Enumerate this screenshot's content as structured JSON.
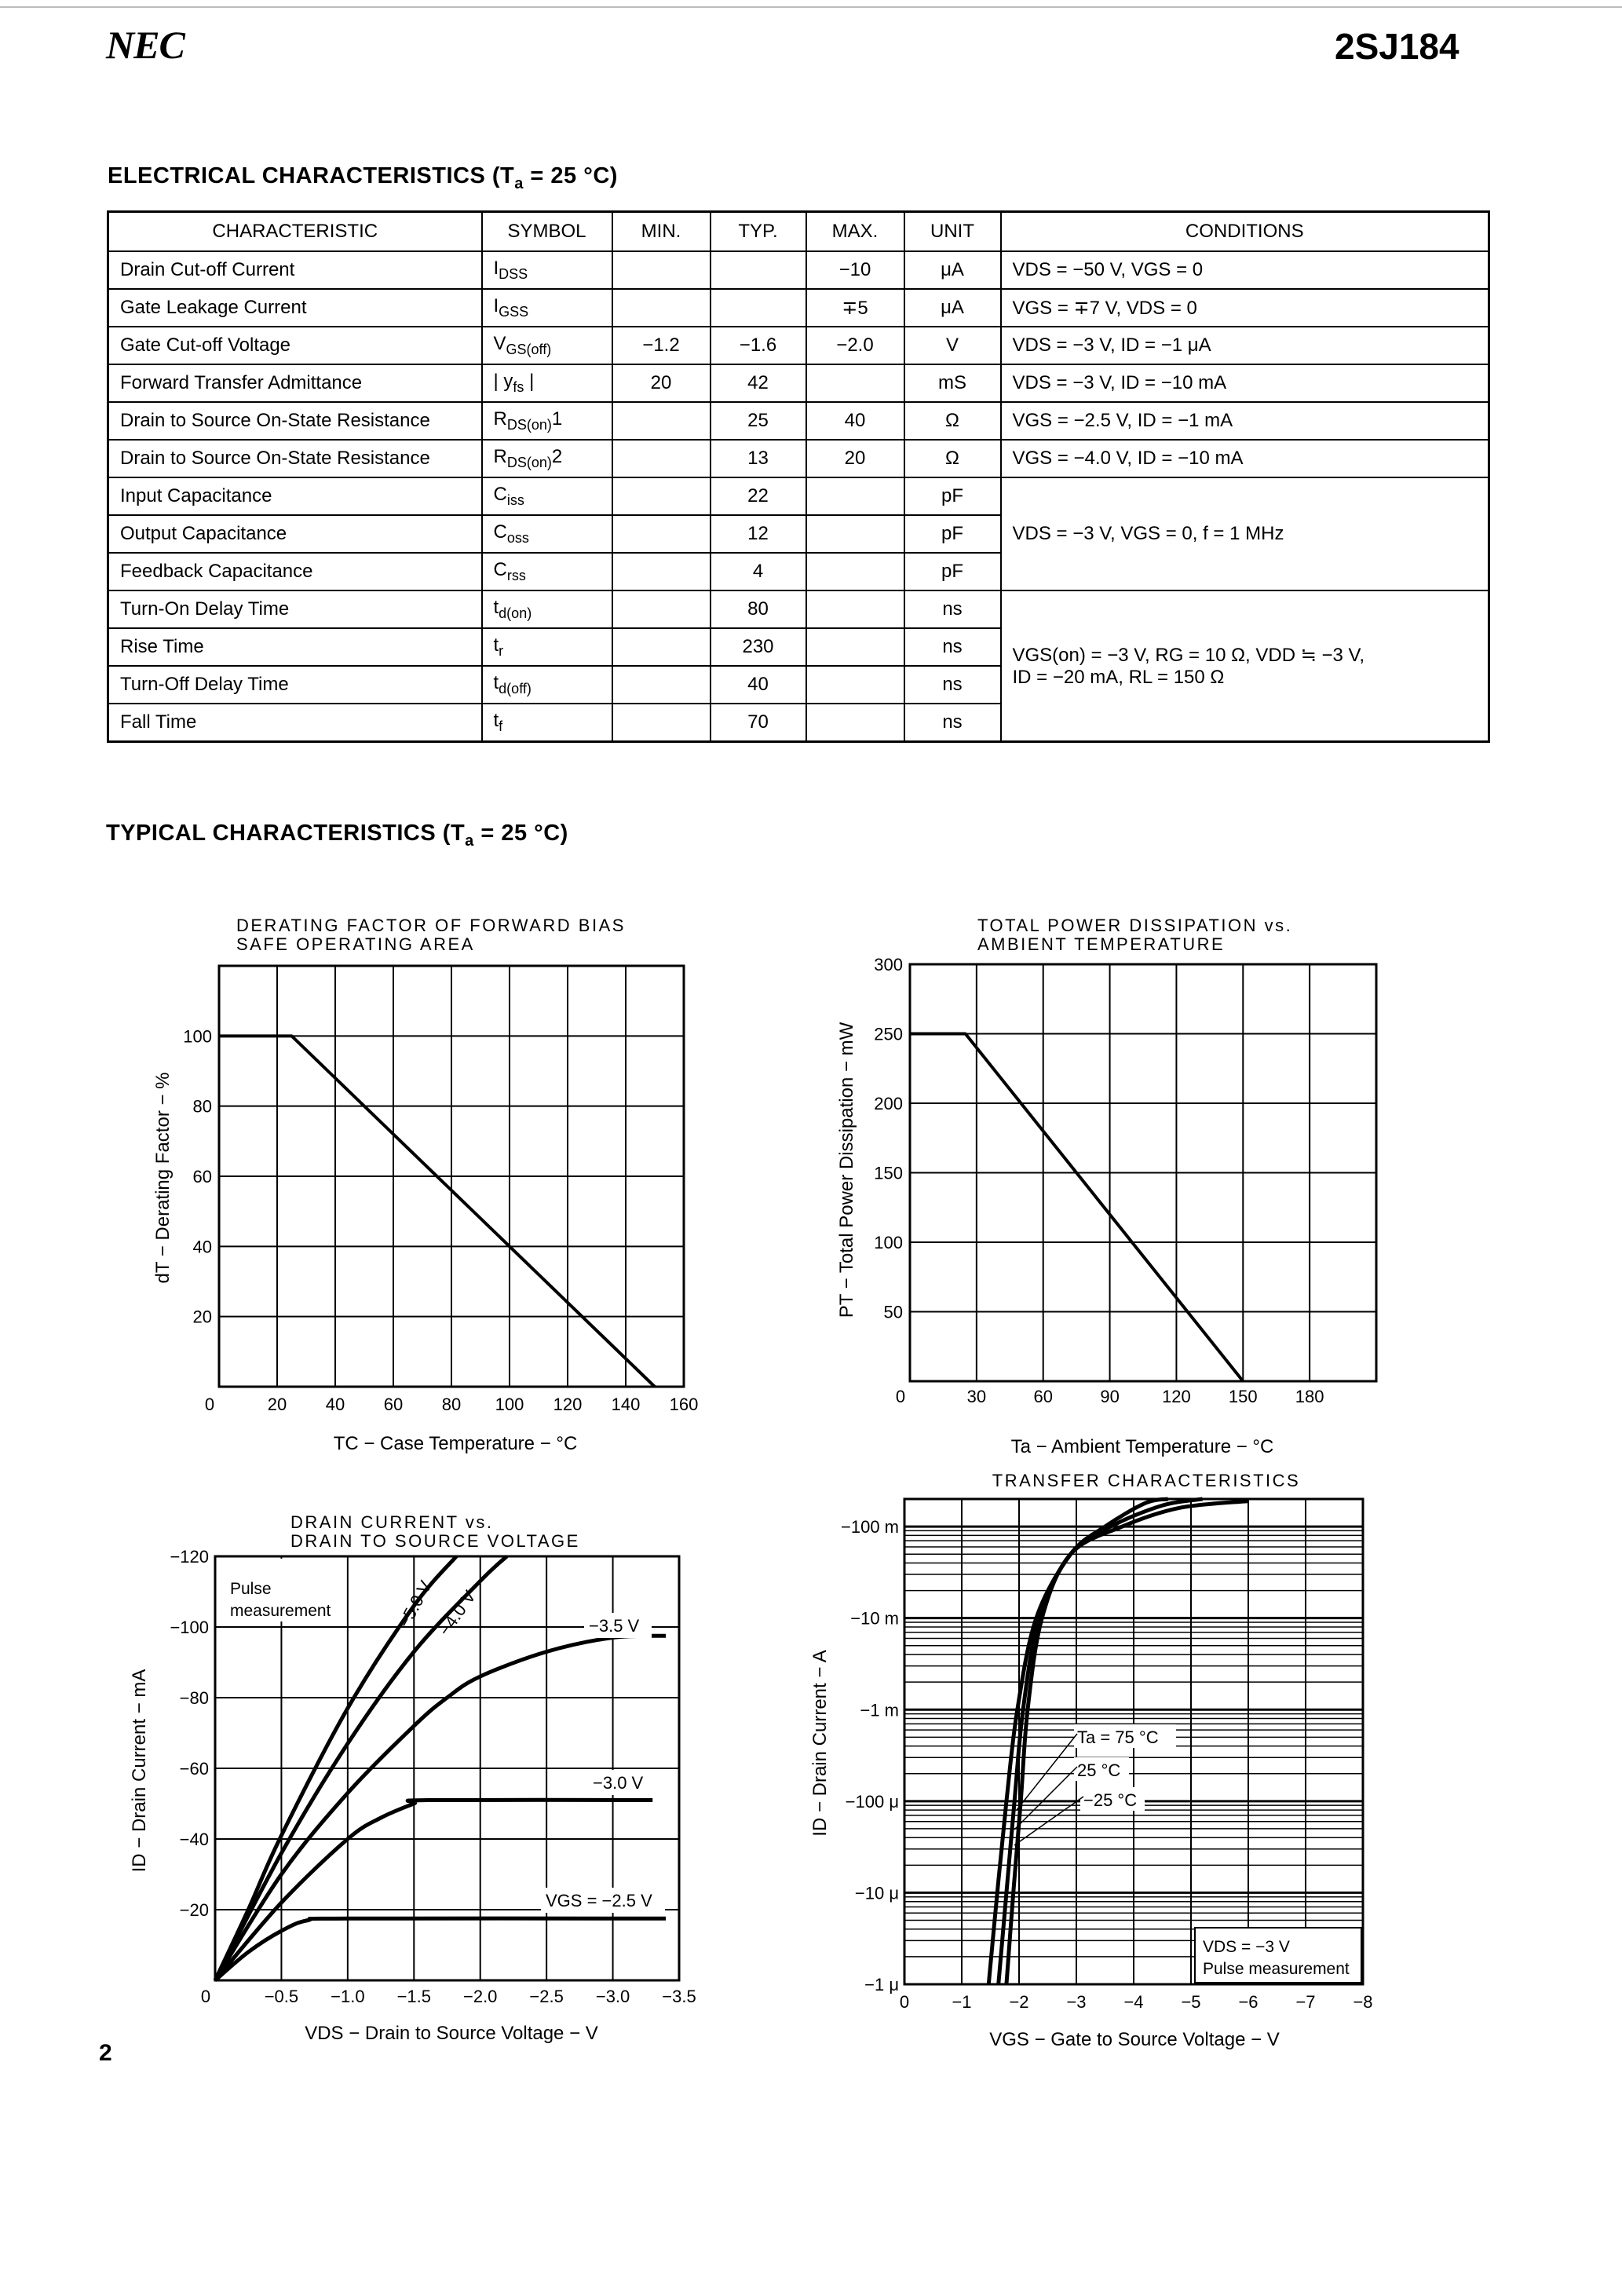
{
  "header": {
    "logo": "NEC",
    "part_number": "2SJ184"
  },
  "electrical": {
    "heading": "ELECTRICAL CHARACTERISTICS",
    "heading_cond": "(T",
    "heading_sub": "a",
    "heading_tail": " = 25 °C)",
    "columns": [
      "CHARACTERISTIC",
      "SYMBOL",
      "MIN.",
      "TYP.",
      "MAX.",
      "UNIT",
      "CONDITIONS"
    ],
    "rows": [
      {
        "name": "Drain Cut-off Current",
        "sym": "I",
        "sym_sub": "DSS",
        "min": "",
        "typ": "",
        "max": "−10",
        "unit": "μA",
        "cond": "VDS = −50 V, VGS = 0"
      },
      {
        "name": "Gate Leakage Current",
        "sym": "I",
        "sym_sub": "GSS",
        "min": "",
        "typ": "",
        "max": "∓5",
        "unit": "μA",
        "cond": "VGS = ∓7 V, VDS = 0"
      },
      {
        "name": "Gate Cut-off Voltage",
        "sym": "V",
        "sym_sub": "GS(off)",
        "min": "−1.2",
        "typ": "−1.6",
        "max": "−2.0",
        "unit": "V",
        "cond": "VDS = −3 V, ID = −1 μA"
      },
      {
        "name": "Forward Transfer Admittance",
        "sym": "| y",
        "sym_sub": "fs",
        "sym_tail": " |",
        "min": "20",
        "typ": "42",
        "max": "",
        "unit": "mS",
        "cond": "VDS = −3 V, ID = −10 mA"
      },
      {
        "name": "Drain to Source On-State Resistance",
        "sym": "R",
        "sym_sub": "DS(on)",
        "sym_tail": "1",
        "min": "",
        "typ": "25",
        "max": "40",
        "unit": "Ω",
        "cond": "VGS = −2.5 V, ID = −1 mA"
      },
      {
        "name": "Drain to Source On-State Resistance",
        "sym": "R",
        "sym_sub": "DS(on)",
        "sym_tail": "2",
        "min": "",
        "typ": "13",
        "max": "20",
        "unit": "Ω",
        "cond": "VGS = −4.0 V, ID = −10 mA"
      },
      {
        "name": "Input Capacitance",
        "sym": "C",
        "sym_sub": "iss",
        "min": "",
        "typ": "22",
        "max": "",
        "unit": "pF",
        "cond": "VDS = −3 V, VGS = 0, f = 1 MHz"
      },
      {
        "name": "Output Capacitance",
        "sym": "C",
        "sym_sub": "oss",
        "min": "",
        "typ": "12",
        "max": "",
        "unit": "pF"
      },
      {
        "name": "Feedback Capacitance",
        "sym": "C",
        "sym_sub": "rss",
        "min": "",
        "typ": "4",
        "max": "",
        "unit": "pF"
      },
      {
        "name": "Turn-On Delay Time",
        "sym": "t",
        "sym_sub": "d(on)",
        "min": "",
        "typ": "80",
        "max": "",
        "unit": "ns",
        "cond": "VGS(on) = −3 V, RG = 10 Ω, VDD ≒ −3 V,",
        "cond2": "ID = −20 mA, RL = 150 Ω"
      },
      {
        "name": "Rise Time",
        "sym": "t",
        "sym_sub": "r",
        "min": "",
        "typ": "230",
        "max": "",
        "unit": "ns"
      },
      {
        "name": "Turn-Off Delay Time",
        "sym": "t",
        "sym_sub": "d(off)",
        "min": "",
        "typ": "40",
        "max": "",
        "unit": "ns"
      },
      {
        "name": "Fall Time",
        "sym": "t",
        "sym_sub": "f",
        "min": "",
        "typ": "70",
        "max": "",
        "unit": "ns"
      }
    ]
  },
  "typical": {
    "heading": "TYPICAL CHARACTERISTICS",
    "heading_cond": "(T",
    "heading_sub": "a",
    "heading_tail": " = 25 °C)"
  },
  "page_number": "2",
  "chart_data": [
    {
      "type": "line",
      "title": [
        "DERATING FACTOR OF FORWARD BIAS",
        "SAFE OPERATING AREA"
      ],
      "xlabel": "TC − Case Temperature − °C",
      "ylabel": "dT − Derating Factor − %",
      "xlim": [
        0,
        160
      ],
      "ylim": [
        0,
        120
      ],
      "grid": true,
      "xticks": [
        0,
        20,
        40,
        60,
        80,
        100,
        120,
        140,
        160
      ],
      "xtick_labels": [
        "0",
        "20",
        "40",
        "60",
        "80",
        "100",
        "120",
        "140",
        "160"
      ],
      "yticks": [
        20,
        40,
        60,
        80,
        100
      ],
      "ytick_labels": [
        "20",
        "40",
        "60",
        "80",
        "100"
      ],
      "series": [
        {
          "points": [
            [
              0,
              100
            ],
            [
              25,
              100
            ],
            [
              150,
              0
            ]
          ]
        }
      ]
    },
    {
      "type": "line",
      "title": [
        "TOTAL POWER DISSIPATION vs.",
        "AMBIENT TEMPERATURE"
      ],
      "xlabel": "Ta − Ambient Temperature − °C",
      "ylabel": "PT − Total Power Dissipation − mW",
      "xlim": [
        0,
        210
      ],
      "ylim": [
        0,
        300
      ],
      "grid": true,
      "xticks": [
        0,
        30,
        60,
        90,
        120,
        150,
        180
      ],
      "xtick_labels": [
        "0",
        "30",
        "60",
        "90",
        "120",
        "150",
        "180"
      ],
      "yticks": [
        50,
        100,
        150,
        200,
        250,
        300
      ],
      "ytick_labels": [
        "50",
        "100",
        "150",
        "200",
        "250",
        "300"
      ],
      "series": [
        {
          "points": [
            [
              0,
              250
            ],
            [
              25,
              250
            ],
            [
              150,
              0
            ]
          ]
        }
      ]
    },
    {
      "type": "line",
      "title": [
        "DRAIN CURRENT vs.",
        "DRAIN TO SOURCE VOLTAGE"
      ],
      "xlabel": "VDS − Drain to Source Voltage − V",
      "ylabel": "ID − Drain Current − mA",
      "xlim": [
        0,
        -3.5
      ],
      "ylim": [
        0,
        -120
      ],
      "grid": true,
      "xticks": [
        0,
        -0.5,
        -1.0,
        -1.5,
        -2.0,
        -2.5,
        -3.0,
        -3.5
      ],
      "xtick_labels": [
        "0",
        "−0.5",
        "−1.0",
        "−1.5",
        "−2.0",
        "−2.5",
        "−3.0",
        "−3.5"
      ],
      "yticks": [
        -20,
        -40,
        -60,
        -80,
        -100,
        -120
      ],
      "ytick_labels": [
        "−20",
        "−40",
        "−60",
        "−80",
        "−100",
        "−120"
      ],
      "annotations": [
        "Pulse",
        "measurement"
      ],
      "series": [
        {
          "name": "−5.0 V",
          "points": [
            [
              0,
              0
            ],
            [
              -0.25,
              -20
            ],
            [
              -0.5,
              -41
            ],
            [
              -1.0,
              -77
            ],
            [
              -1.5,
              -106
            ],
            [
              -1.82,
              -120
            ]
          ]
        },
        {
          "name": "−4.0 V",
          "points": [
            [
              0,
              0
            ],
            [
              -0.5,
              -36
            ],
            [
              -1.0,
              -67
            ],
            [
              -1.5,
              -93
            ],
            [
              -2.0,
              -113
            ],
            [
              -2.2,
              -120
            ]
          ]
        },
        {
          "name": "−3.5 V",
          "points": [
            [
              0,
              0
            ],
            [
              -0.5,
              -30
            ],
            [
              -1.0,
              -53
            ],
            [
              -1.5,
              -72
            ],
            [
              -1.75,
              -80
            ],
            [
              -2.0,
              -86
            ],
            [
              -2.5,
              -93
            ],
            [
              -3.0,
              -97
            ],
            [
              -3.4,
              -97.5
            ]
          ]
        },
        {
          "name": "−3.0 V",
          "points": [
            [
              0,
              0
            ],
            [
              -0.5,
              -22
            ],
            [
              -1.0,
              -40
            ],
            [
              -1.25,
              -46
            ],
            [
              -1.5,
              -50
            ],
            [
              -1.6,
              -51
            ],
            [
              -3.3,
              -51
            ]
          ]
        },
        {
          "name": "VGS = −2.5 V",
          "points": [
            [
              0,
              0
            ],
            [
              -0.25,
              -8
            ],
            [
              -0.5,
              -14
            ],
            [
              -0.7,
              -17
            ],
            [
              -1.0,
              -17.5
            ],
            [
              -3.4,
              -17.5
            ]
          ]
        }
      ]
    },
    {
      "type": "line",
      "title": [
        "TRANSFER CHARACTERISTICS"
      ],
      "xlabel": "VGS − Gate to Source Voltage − V",
      "ylabel": "ID − Drain Current − A",
      "xlim": [
        0,
        -8
      ],
      "ylim": [
        -1e-06,
        -0.2
      ],
      "yscale": "log",
      "grid": true,
      "xticks": [
        0,
        -1,
        -2,
        -3,
        -4,
        -5,
        -6,
        -7,
        -8
      ],
      "xtick_labels": [
        "0",
        "−1",
        "−2",
        "−3",
        "−4",
        "−5",
        "−6",
        "−7",
        "−8"
      ],
      "yticks": [
        -0.1,
        -0.01,
        -0.001,
        -0.0001,
        -1e-05,
        -1e-06
      ],
      "ytick_labels": [
        "−100 m",
        "−10 m",
        "−1 m",
        "−100 μ",
        "−10 μ",
        "−1 μ"
      ],
      "annotations": [
        "VDS = −3 V",
        "Pulse measurement"
      ],
      "series": [
        {
          "name": "Ta = 75 °C",
          "points": [
            [
              -1.47,
              -1e-06
            ],
            [
              -1.62,
              -1e-05
            ],
            [
              -1.78,
              -0.0001
            ],
            [
              -1.97,
              -0.001
            ],
            [
              -2.3,
              -0.01
            ],
            [
              -2.9,
              -0.05
            ],
            [
              -3.5,
              -0.1
            ],
            [
              -4.2,
              -0.18
            ],
            [
              -4.6,
              -0.2
            ]
          ]
        },
        {
          "name": "25 °C",
          "points": [
            [
              -1.64,
              -1e-06
            ],
            [
              -1.78,
              -1e-05
            ],
            [
              -1.92,
              -0.0001
            ],
            [
              -2.07,
              -0.001
            ],
            [
              -2.35,
              -0.01
            ],
            [
              -2.9,
              -0.05
            ],
            [
              -3.6,
              -0.1
            ],
            [
              -4.5,
              -0.17
            ],
            [
              -5.2,
              -0.2
            ]
          ]
        },
        {
          "name": "−25 °C",
          "points": [
            [
              -1.78,
              -1e-06
            ],
            [
              -1.9,
              -1e-05
            ],
            [
              -2.03,
              -0.0001
            ],
            [
              -2.15,
              -0.001
            ],
            [
              -2.4,
              -0.01
            ],
            [
              -2.9,
              -0.05
            ],
            [
              -3.8,
              -0.1
            ],
            [
              -4.8,
              -0.16
            ],
            [
              -6.0,
              -0.19
            ]
          ]
        }
      ]
    }
  ]
}
